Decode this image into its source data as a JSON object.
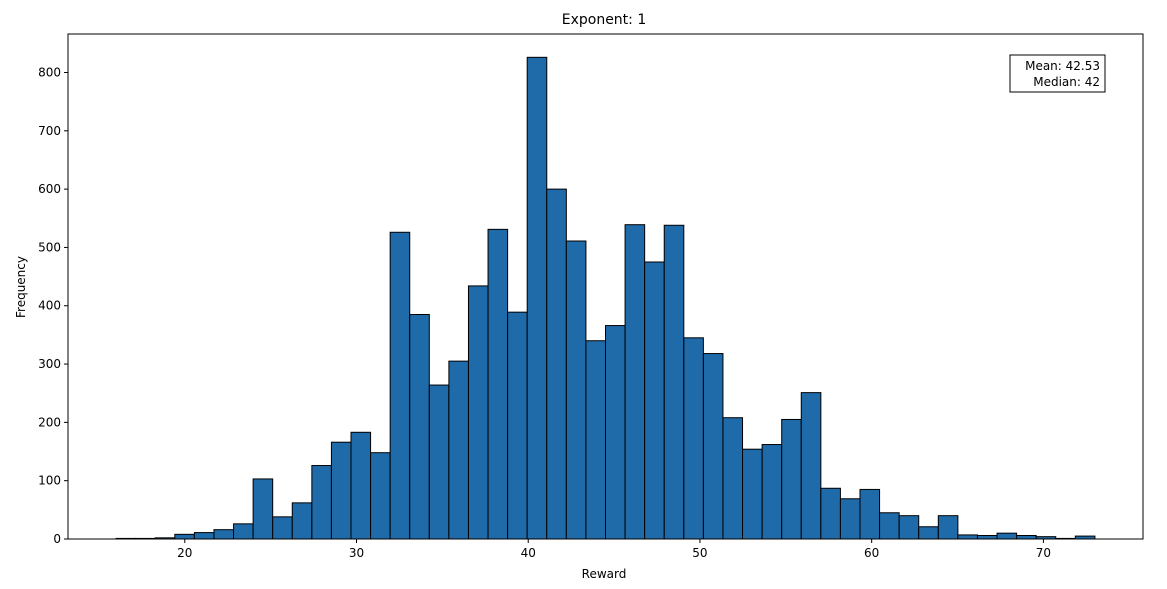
{
  "chart_data": {
    "type": "bar",
    "title": "Exponent: 1",
    "xlabel": "Reward",
    "ylabel": "Frequency",
    "xlim": [
      13.2,
      75.8
    ],
    "ylim": [
      0,
      866
    ],
    "x_ticks": [
      20,
      30,
      40,
      50,
      60,
      70
    ],
    "y_ticks": [
      0,
      100,
      200,
      300,
      400,
      500,
      600,
      700,
      800
    ],
    "bin_start": 16,
    "bin_width": 1.14,
    "values": [
      1,
      1,
      2,
      8,
      11,
      16,
      26,
      103,
      38,
      62,
      126,
      166,
      183,
      148,
      526,
      385,
      264,
      305,
      434,
      531,
      389,
      826,
      600,
      511,
      340,
      366,
      539,
      475,
      538,
      345,
      318,
      208,
      154,
      162,
      205,
      251,
      87,
      69,
      85,
      45,
      40,
      21,
      40,
      7,
      6,
      10,
      6,
      4,
      1,
      5
    ],
    "bar_color": "#1f6aa9",
    "edge_color": "#000000",
    "grid": false,
    "annotation": {
      "mean_text": "Mean: 42.53",
      "median_text": "Median: 42",
      "position": "top-right"
    }
  }
}
